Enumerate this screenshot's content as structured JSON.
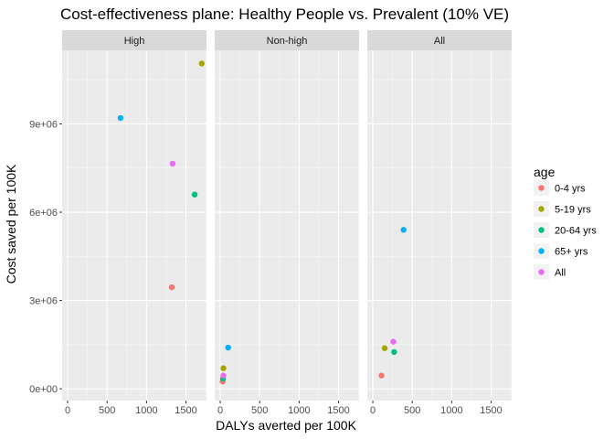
{
  "chart_data": {
    "type": "scatter",
    "title": "Cost-effectiveness plane: Healthy People vs. Prevalent (10% VE)",
    "xlabel": "DALYs averted per 100K",
    "ylabel": "Cost saved per 100K",
    "xlim": [
      -70,
      1760
    ],
    "ylim": [
      -400000,
      11500000
    ],
    "x_ticks": [
      0,
      500,
      1000,
      1500
    ],
    "x_tick_labels": [
      "0",
      "500",
      "1000",
      "1500"
    ],
    "y_ticks": [
      0,
      3000000,
      6000000,
      9000000
    ],
    "y_tick_labels": [
      "0e+00",
      "3e+06",
      "6e+06",
      "9e+06"
    ],
    "facets": [
      "High",
      "Non-high",
      "All"
    ],
    "legend": {
      "title": "age",
      "position": "right",
      "entries": [
        "0-4 yrs",
        "5-19 yrs",
        "20-64 yrs",
        "65+ yrs",
        "All"
      ]
    },
    "colors": {
      "0-4 yrs": "#F8766D",
      "5-19 yrs": "#A3A500",
      "20-64 yrs": "#00BF7D",
      "65+ yrs": "#00B0F6",
      "All": "#E76BF3"
    },
    "grid": true,
    "points": [
      {
        "facet": "High",
        "group": "0-4 yrs",
        "x": 1320,
        "y": 3450000
      },
      {
        "facet": "High",
        "group": "5-19 yrs",
        "x": 1700,
        "y": 11050000
      },
      {
        "facet": "High",
        "group": "20-64 yrs",
        "x": 1610,
        "y": 6600000
      },
      {
        "facet": "High",
        "group": "65+ yrs",
        "x": 670,
        "y": 9200000
      },
      {
        "facet": "High",
        "group": "All",
        "x": 1330,
        "y": 7650000
      },
      {
        "facet": "Non-high",
        "group": "0-4 yrs",
        "x": 30,
        "y": 250000
      },
      {
        "facet": "Non-high",
        "group": "5-19 yrs",
        "x": 40,
        "y": 700000
      },
      {
        "facet": "Non-high",
        "group": "20-64 yrs",
        "x": 35,
        "y": 350000
      },
      {
        "facet": "Non-high",
        "group": "65+ yrs",
        "x": 100,
        "y": 1400000
      },
      {
        "facet": "Non-high",
        "group": "All",
        "x": 40,
        "y": 450000
      },
      {
        "facet": "All",
        "group": "0-4 yrs",
        "x": 110,
        "y": 450000
      },
      {
        "facet": "All",
        "group": "5-19 yrs",
        "x": 150,
        "y": 1380000
      },
      {
        "facet": "All",
        "group": "20-64 yrs",
        "x": 270,
        "y": 1250000
      },
      {
        "facet": "All",
        "group": "65+ yrs",
        "x": 390,
        "y": 5400000
      },
      {
        "facet": "All",
        "group": "All",
        "x": 260,
        "y": 1600000
      }
    ]
  }
}
